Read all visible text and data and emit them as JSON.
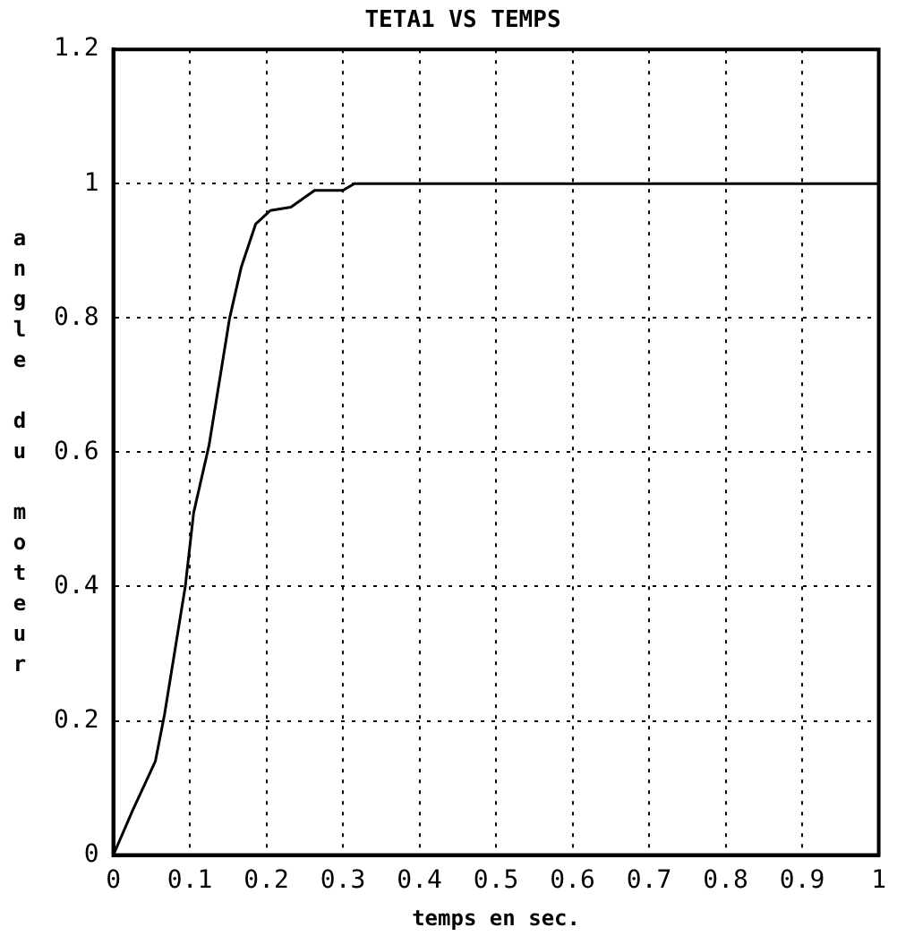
{
  "chart_data": {
    "type": "line",
    "title": "TETA1 VS TEMPS",
    "xlabel": "temps en sec.",
    "ylabel": "angle du moteur",
    "x": [
      0,
      0.025,
      0.055,
      0.067,
      0.094,
      0.105,
      0.125,
      0.152,
      0.167,
      0.186,
      0.205,
      0.232,
      0.263,
      0.3,
      0.315,
      1
    ],
    "series": [
      {
        "color": "#000000",
        "values": [
          0,
          0.066,
          0.14,
          0.21,
          0.4,
          0.51,
          0.61,
          0.8,
          0.875,
          0.94,
          0.96,
          0.965,
          0.99,
          0.99,
          1,
          1
        ]
      }
    ],
    "xlim": [
      0,
      1
    ],
    "xticks": [
      0,
      0.1,
      0.2,
      0.3,
      0.4,
      0.5,
      0.6,
      0.7,
      0.8,
      0.9,
      1
    ],
    "ylim": [
      0,
      1.2
    ],
    "yticks": [
      0,
      0.2,
      0.4,
      0.6,
      0.8,
      1,
      1.2
    ],
    "grid": true,
    "legend": false,
    "marker": "none",
    "line_style": "solid"
  }
}
